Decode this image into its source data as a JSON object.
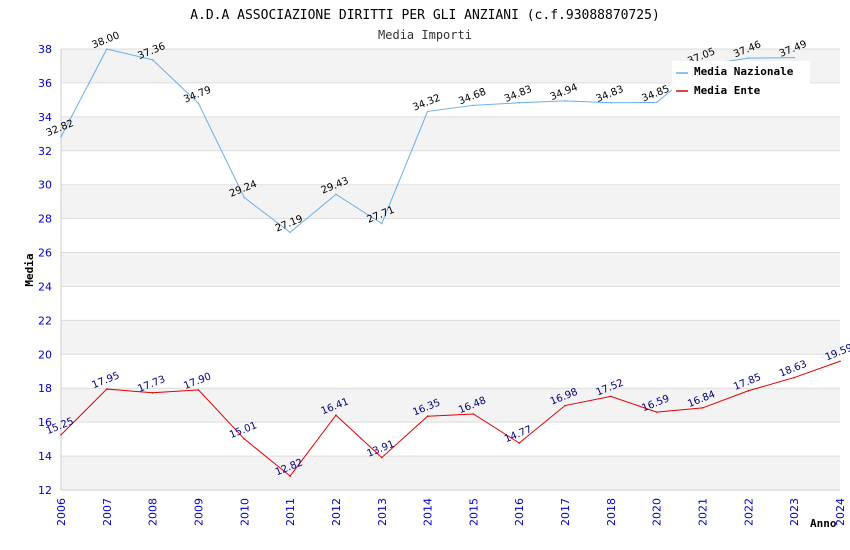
{
  "chart_data": {
    "type": "line",
    "title": "A.D.A ASSOCIAZIONE DIRITTI PER GLI ANZIANI (c.f.93088870725)",
    "subtitle": "Media Importi",
    "xlabel": "Anno",
    "ylabel": "Media",
    "ylim": [
      12,
      38
    ],
    "yticks": [
      12,
      14,
      16,
      18,
      20,
      22,
      24,
      26,
      28,
      30,
      32,
      34,
      36,
      38
    ],
    "categories": [
      "2006",
      "2007",
      "2008",
      "2009",
      "2010",
      "2011",
      "2012",
      "2013",
      "2014",
      "2015",
      "2016",
      "2017",
      "2018",
      "2020",
      "2021",
      "2022",
      "2023",
      "2024"
    ],
    "series": [
      {
        "name": "Media Nazionale",
        "color": "#6aaee8",
        "values": [
          32.82,
          38.0,
          37.36,
          34.79,
          29.24,
          27.19,
          29.43,
          27.71,
          34.32,
          34.68,
          34.83,
          34.94,
          34.83,
          34.85,
          37.05,
          37.46,
          37.49,
          null
        ],
        "labels": [
          "32.82",
          "38.00",
          "37.36",
          "34.79",
          "29.24",
          "27.19",
          "29.43",
          "27.71",
          "34.32",
          "34.68",
          "34.83",
          "34.94",
          "34.83",
          "34.85",
          "37.05",
          "37.46",
          "37.49",
          ""
        ]
      },
      {
        "name": "Media Ente",
        "color": "#e00000",
        "values": [
          15.25,
          17.95,
          17.73,
          17.9,
          15.01,
          12.82,
          16.41,
          13.91,
          16.35,
          16.48,
          14.77,
          16.98,
          17.52,
          16.59,
          16.84,
          17.85,
          18.63,
          19.59
        ],
        "labels": [
          "15.25",
          "17.95",
          "17.73",
          "17.90",
          "15.01",
          "12.82",
          "16.41",
          "13.91",
          "16.35",
          "16.48",
          "14.77",
          "16.98",
          "17.52",
          "16.59",
          "16.84",
          "17.85",
          "18.63",
          "19.59"
        ]
      }
    ],
    "legend": "top-right",
    "grid": true
  }
}
